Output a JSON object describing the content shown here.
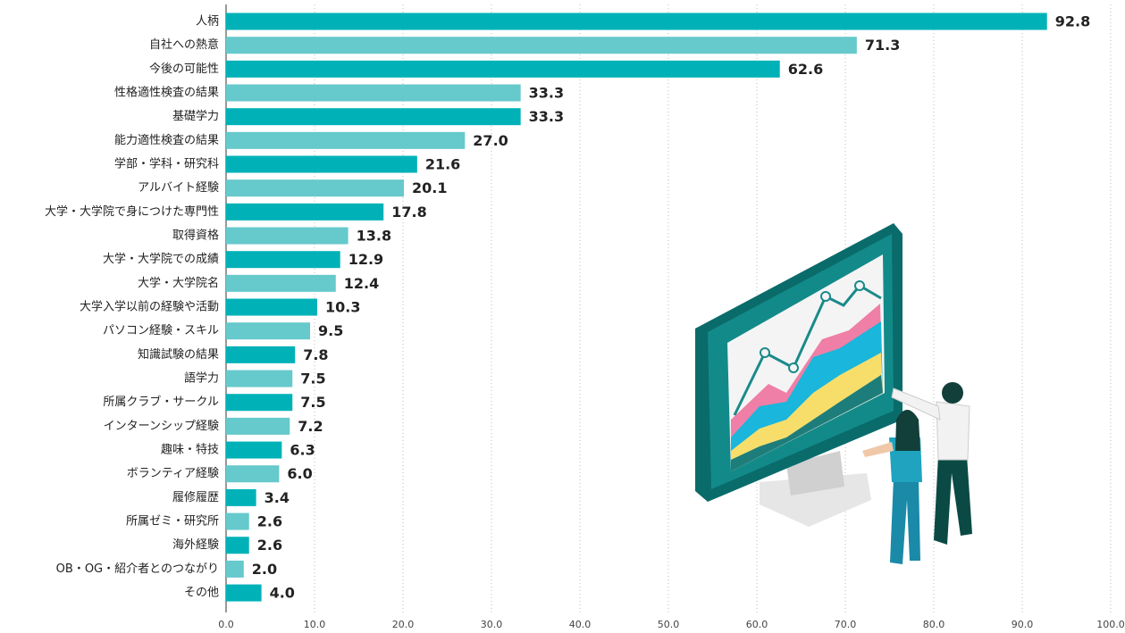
{
  "chart_data": {
    "type": "barh",
    "categories": [
      "人柄",
      "自社への熱意",
      "今後の可能性",
      "性格適性検査の結果",
      "基礎学力",
      "能力適性検査の結果",
      "学部・学科・研究科",
      "アルバイト経験",
      "大学・大学院で身につけた専門性",
      "取得資格",
      "大学・大学院での成績",
      "大学・大学院名",
      "大学入学以前の経験や活動",
      "パソコン経験・スキル",
      "知識試験の結果",
      "語学力",
      "所属クラブ・サークル",
      "インターンシップ経験",
      "趣味・特技",
      "ボランティア経験",
      "履修履歴",
      "所属ゼミ・研究所",
      "海外経験",
      "OB・OG・紹介者とのつながり",
      "その他"
    ],
    "values": [
      92.8,
      71.3,
      62.6,
      33.3,
      33.3,
      27.0,
      21.6,
      20.1,
      17.8,
      13.8,
      12.9,
      12.4,
      10.3,
      9.5,
      7.8,
      7.5,
      7.5,
      7.2,
      6.3,
      6.0,
      3.4,
      2.6,
      2.6,
      2.0,
      4.0
    ],
    "value_labels": [
      "92.8",
      "71.3",
      "62.6",
      "33.3",
      "33.3",
      "27.0",
      "21.6",
      "20.1",
      "17.8",
      "13.8",
      "12.9",
      "12.4",
      "10.3",
      "9.5",
      "7.8",
      "7.5",
      "7.5",
      "7.2",
      "6.3",
      "6.0",
      "3.4",
      "2.6",
      "2.6",
      "2.0",
      "4.0"
    ],
    "colors": [
      "#00b2b8",
      "#66c9cc"
    ],
    "xlim": [
      0,
      100
    ],
    "xticks": [
      {
        "value": 0,
        "label": "0.0"
      },
      {
        "value": 10,
        "label": "10.0"
      },
      {
        "value": 20,
        "label": "20.0"
      },
      {
        "value": 30,
        "label": "30.0"
      },
      {
        "value": 40,
        "label": "40.0"
      },
      {
        "value": 50,
        "label": "50.0"
      },
      {
        "value": 60,
        "label": "60.0"
      },
      {
        "value": 70,
        "label": "70.0"
      },
      {
        "value": 80,
        "label": "80.0"
      },
      {
        "value": 90,
        "label": "90.0"
      },
      {
        "value": 100,
        "label": "100.0"
      }
    ],
    "grid": true
  }
}
